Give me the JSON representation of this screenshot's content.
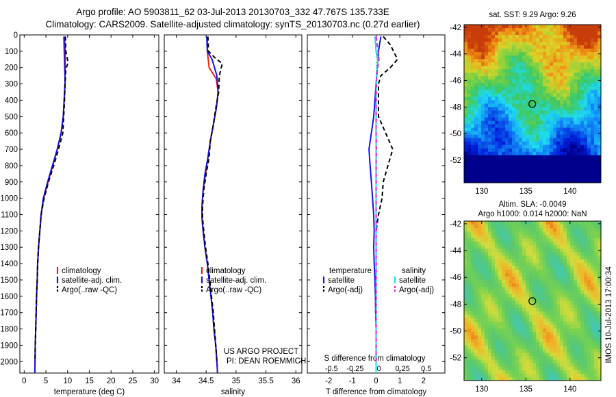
{
  "header": {
    "line1": "Argo profile: AO 5903811_62 03-Jul-2013 20130703_332 47.767S 135.733E",
    "line2": "Climatology: CARS2009. Satellite-adjusted climatology: synTS_20130703.nc (0.27d earlier)"
  },
  "depth_ticks": [
    "0",
    "100",
    "200",
    "300",
    "400",
    "500",
    "600",
    "700",
    "800",
    "900",
    "1000",
    "1100",
    "1200",
    "1300",
    "1400",
    "1500",
    "1600",
    "1700",
    "1800",
    "1900",
    "2000"
  ],
  "credit": {
    "line1": "US ARGO PROJECT",
    "line2": "PI: DEAN ROEMMICH"
  },
  "timestamp": "IMOS 10-Jul-2013 17:00:34",
  "colors": {
    "climatology": "#e8201c",
    "satellite": "#1414e6",
    "argo": "#000000",
    "satellite_s": "#22d8e8",
    "argo_s": "#e020d8"
  },
  "chart_data": [
    {
      "type": "line",
      "name": "temperature",
      "xlabel": "temperature (deg C)",
      "xlim": [
        -1,
        31
      ],
      "ylim": [
        2070,
        0
      ],
      "xticks": [
        "0",
        "5",
        "10",
        "15",
        "20",
        "25",
        "30"
      ],
      "legend": {
        "placement": "lower-left",
        "entries": [
          "climatology",
          "satellite-adj. clim.",
          "Argo(..raw -QC)"
        ]
      },
      "series": [
        {
          "name": "climatology",
          "color": "climatology",
          "dash": false,
          "points": [
            [
              9.1,
              10
            ],
            [
              9.2,
              100
            ],
            [
              9.3,
              200
            ],
            [
              9.4,
              250
            ],
            [
              9.4,
              300
            ],
            [
              9.2,
              400
            ],
            [
              9.0,
              500
            ],
            [
              8.5,
              600
            ],
            [
              7.6,
              700
            ],
            [
              6.6,
              800
            ],
            [
              5.5,
              900
            ],
            [
              4.5,
              1000
            ],
            [
              3.9,
              1100
            ],
            [
              3.6,
              1200
            ],
            [
              3.3,
              1300
            ],
            [
              3.1,
              1400
            ],
            [
              3.0,
              1500
            ],
            [
              2.85,
              1600
            ],
            [
              2.75,
              1700
            ],
            [
              2.65,
              1800
            ],
            [
              2.55,
              1900
            ],
            [
              2.5,
              2000
            ],
            [
              2.45,
              2070
            ]
          ]
        },
        {
          "name": "satellite-adj. clim.",
          "color": "satellite",
          "dash": false,
          "points": [
            [
              9.3,
              10
            ],
            [
              9.4,
              100
            ],
            [
              9.4,
              200
            ],
            [
              9.4,
              300
            ],
            [
              9.2,
              400
            ],
            [
              9.0,
              500
            ],
            [
              8.5,
              600
            ],
            [
              7.6,
              700
            ],
            [
              6.5,
              800
            ],
            [
              5.4,
              900
            ],
            [
              4.4,
              1000
            ],
            [
              3.9,
              1100
            ],
            [
              3.6,
              1200
            ],
            [
              3.3,
              1300
            ],
            [
              3.1,
              1400
            ],
            [
              3.0,
              1500
            ],
            [
              2.85,
              1600
            ],
            [
              2.75,
              1700
            ],
            [
              2.65,
              1800
            ],
            [
              2.55,
              1900
            ],
            [
              2.5,
              2000
            ],
            [
              2.45,
              2070
            ]
          ]
        },
        {
          "name": "Argo(..raw -QC)",
          "color": "argo",
          "dash": true,
          "points": [
            [
              9.5,
              10
            ],
            [
              9.6,
              100
            ],
            [
              10.1,
              170
            ],
            [
              9.6,
              210
            ],
            [
              9.4,
              300
            ],
            [
              9.3,
              400
            ],
            [
              9.1,
              500
            ],
            [
              8.9,
              600
            ],
            [
              7.9,
              700
            ],
            [
              6.8,
              800
            ],
            [
              5.6,
              900
            ],
            [
              4.6,
              1000
            ],
            [
              3.9,
              1100
            ],
            [
              3.6,
              1200
            ],
            [
              3.3,
              1300
            ],
            [
              3.1,
              1400
            ],
            [
              3.0,
              1500
            ],
            [
              2.85,
              1600
            ],
            [
              2.75,
              1700
            ],
            [
              2.65,
              1800
            ],
            [
              2.55,
              1900
            ],
            [
              2.5,
              2000
            ]
          ]
        }
      ]
    },
    {
      "type": "line",
      "name": "salinity",
      "xlabel": "salinity",
      "xlim": [
        33.8,
        36.1
      ],
      "ylim": [
        2070,
        0
      ],
      "xticks": [
        "34",
        "34.5",
        "35",
        "35.5",
        "36"
      ],
      "legend": {
        "placement": "lower-left",
        "entries": [
          "climatology",
          "satellite-adj. clim.",
          "Argo(..raw -QC)"
        ]
      },
      "series": [
        {
          "name": "climatology",
          "color": "climatology",
          "dash": false,
          "points": [
            [
              34.52,
              10
            ],
            [
              34.52,
              100
            ],
            [
              34.55,
              200
            ],
            [
              34.67,
              270
            ],
            [
              34.7,
              350
            ],
            [
              34.67,
              450
            ],
            [
              34.62,
              550
            ],
            [
              34.57,
              650
            ],
            [
              34.53,
              750
            ],
            [
              34.49,
              850
            ],
            [
              34.45,
              950
            ],
            [
              34.43,
              1050
            ],
            [
              34.43,
              1120
            ],
            [
              34.45,
              1200
            ],
            [
              34.48,
              1300
            ],
            [
              34.52,
              1400
            ],
            [
              34.55,
              1500
            ],
            [
              34.58,
              1600
            ],
            [
              34.61,
              1700
            ],
            [
              34.63,
              1800
            ],
            [
              34.66,
              1900
            ],
            [
              34.68,
              2000
            ],
            [
              34.69,
              2070
            ]
          ]
        },
        {
          "name": "satellite-adj. clim.",
          "color": "satellite",
          "dash": false,
          "points": [
            [
              34.51,
              10
            ],
            [
              34.52,
              100
            ],
            [
              34.6,
              150
            ],
            [
              34.68,
              250
            ],
            [
              34.7,
              350
            ],
            [
              34.67,
              450
            ],
            [
              34.62,
              550
            ],
            [
              34.57,
              650
            ],
            [
              34.53,
              750
            ],
            [
              34.48,
              850
            ],
            [
              34.45,
              950
            ],
            [
              34.43,
              1050
            ],
            [
              34.43,
              1120
            ],
            [
              34.45,
              1200
            ],
            [
              34.48,
              1300
            ],
            [
              34.52,
              1400
            ],
            [
              34.55,
              1500
            ],
            [
              34.58,
              1600
            ],
            [
              34.61,
              1700
            ],
            [
              34.63,
              1800
            ],
            [
              34.66,
              1900
            ],
            [
              34.68,
              2000
            ],
            [
              34.69,
              2070
            ]
          ]
        },
        {
          "name": "Argo(..raw -QC)",
          "color": "argo",
          "dash": true,
          "points": [
            [
              34.53,
              10
            ],
            [
              34.54,
              100
            ],
            [
              34.66,
              145
            ],
            [
              34.77,
              175
            ],
            [
              34.72,
              250
            ],
            [
              34.71,
              350
            ],
            [
              34.66,
              450
            ],
            [
              34.62,
              550
            ],
            [
              34.57,
              650
            ],
            [
              34.55,
              750
            ],
            [
              34.5,
              850
            ],
            [
              34.46,
              950
            ],
            [
              34.44,
              1050
            ],
            [
              34.44,
              1120
            ],
            [
              34.46,
              1200
            ],
            [
              34.49,
              1300
            ],
            [
              34.53,
              1400
            ],
            [
              34.56,
              1500
            ],
            [
              34.59,
              1600
            ],
            [
              34.62,
              1700
            ],
            [
              34.64,
              1800
            ],
            [
              34.66,
              1900
            ],
            [
              34.68,
              2000
            ]
          ]
        }
      ]
    },
    {
      "type": "line",
      "name": "differences",
      "xlabel": "T difference from climatology",
      "xlabel_top": "S difference from climatology",
      "xlim": [
        -2.9,
        2.9
      ],
      "ylim": [
        2070,
        0
      ],
      "xticks": [
        "-2",
        "-1",
        "0",
        "1",
        "2"
      ],
      "xticks_top": [
        "-0.5",
        "-0.25",
        "0",
        "0.25",
        "0.5"
      ],
      "legend": {
        "placement": "lower-left",
        "col1_header": "temperature",
        "col2_header": "salinity",
        "entries": [
          "satellite",
          "Argo(-adj)",
          "satellite",
          "Argo(-adj)"
        ]
      },
      "series": [
        {
          "name": "satellite",
          "quantity": "temperature",
          "color": "satellite",
          "dash": false,
          "points": [
            [
              0.2,
              10
            ],
            [
              0.1,
              100
            ],
            [
              0.05,
              200
            ],
            [
              0.0,
              300
            ],
            [
              -0.05,
              400
            ],
            [
              -0.1,
              500
            ],
            [
              -0.2,
              600
            ],
            [
              -0.3,
              700
            ],
            [
              -0.25,
              800
            ],
            [
              -0.2,
              900
            ],
            [
              -0.15,
              1000
            ],
            [
              -0.1,
              1100
            ],
            [
              -0.08,
              1200
            ],
            [
              -0.1,
              1300
            ],
            [
              -0.08,
              1400
            ],
            [
              -0.05,
              1500
            ],
            [
              -0.03,
              1600
            ],
            [
              -0.02,
              1700
            ],
            [
              0.0,
              1800
            ],
            [
              0.0,
              1900
            ],
            [
              0.0,
              2070
            ]
          ]
        },
        {
          "name": "Argo(-adj)",
          "quantity": "temperature",
          "color": "argo",
          "dash": true,
          "points": [
            [
              0.3,
              10
            ],
            [
              0.6,
              60
            ],
            [
              0.9,
              150
            ],
            [
              0.6,
              200
            ],
            [
              0.2,
              250
            ],
            [
              0.1,
              300
            ],
            [
              0.1,
              400
            ],
            [
              0.1,
              500
            ],
            [
              0.4,
              600
            ],
            [
              0.7,
              700
            ],
            [
              0.5,
              800
            ],
            [
              0.3,
              900
            ],
            [
              0.25,
              1000
            ],
            [
              0.1,
              1100
            ],
            [
              0.0,
              1200
            ],
            [
              0.0,
              1300
            ],
            [
              0.0,
              1400
            ],
            [
              0.0,
              1500
            ],
            [
              0.0,
              1600
            ],
            [
              0.0,
              1700
            ],
            [
              0.0,
              1800
            ],
            [
              0.0,
              1900
            ],
            [
              0.0,
              2000
            ]
          ]
        },
        {
          "name": "satellite",
          "quantity": "salinity",
          "color": "satellite_s",
          "dash": false,
          "points": [
            [
              -0.05,
              10
            ],
            [
              0.0,
              100
            ],
            [
              0.07,
              150
            ],
            [
              0.02,
              250
            ],
            [
              0.0,
              350
            ],
            [
              0.0,
              450
            ],
            [
              0.0,
              550
            ],
            [
              0.0,
              650
            ],
            [
              0.0,
              750
            ],
            [
              0.0,
              850
            ],
            [
              0.0,
              1000
            ],
            [
              0.0,
              1100
            ],
            [
              0.0,
              1300
            ],
            [
              0.0,
              1500
            ],
            [
              0.0,
              1700
            ],
            [
              0.0,
              1900
            ],
            [
              0.0,
              2070
            ]
          ]
        },
        {
          "name": "Argo(-adj)",
          "quantity": "salinity",
          "color": "argo_s",
          "dash": true,
          "points": [
            [
              0.0,
              10
            ],
            [
              0.08,
              100
            ],
            [
              0.12,
              150
            ],
            [
              0.07,
              200
            ],
            [
              0.03,
              250
            ],
            [
              0.01,
              300
            ],
            [
              0.0,
              400
            ],
            [
              0.0,
              500
            ],
            [
              0.0,
              600
            ],
            [
              0.01,
              700
            ],
            [
              0.0,
              800
            ],
            [
              0.0,
              900
            ],
            [
              0.0,
              1000
            ],
            [
              0.0,
              1100
            ],
            [
              0.0,
              1200
            ],
            [
              0.0,
              1300
            ],
            [
              0.0,
              1400
            ],
            [
              0.0,
              1500
            ],
            [
              0.0,
              1600
            ],
            [
              0.0,
              1700
            ],
            [
              0.0,
              1800
            ],
            [
              0.0,
              1900
            ],
            [
              0.0,
              2000
            ]
          ]
        }
      ]
    },
    {
      "type": "heatmap",
      "name": "sst-map",
      "title": "sat. SST: 9.29 Argo: 9.26",
      "xlim": [
        128,
        143.5
      ],
      "ylim": [
        -53.7,
        -41.8
      ],
      "xticks": [
        "130",
        "135",
        "140"
      ],
      "yticks": [
        "-42",
        "-44",
        "-46",
        "-48",
        "-50",
        "-52"
      ],
      "marker": {
        "lon": 135.73,
        "lat": -47.77
      }
    },
    {
      "type": "heatmap",
      "name": "sla-map",
      "title_line1": "Altim. SLA: -0.0049",
      "title_line2": "Argo h1000: 0.014 h2000: NaN",
      "xlim": [
        128,
        143.5
      ],
      "ylim": [
        -53.7,
        -41.8
      ],
      "xticks": [
        "130",
        "135",
        "140"
      ],
      "yticks": [
        "-42",
        "-44",
        "-46",
        "-48",
        "-50",
        "-52"
      ],
      "marker": {
        "lon": 135.73,
        "lat": -47.77
      }
    }
  ]
}
